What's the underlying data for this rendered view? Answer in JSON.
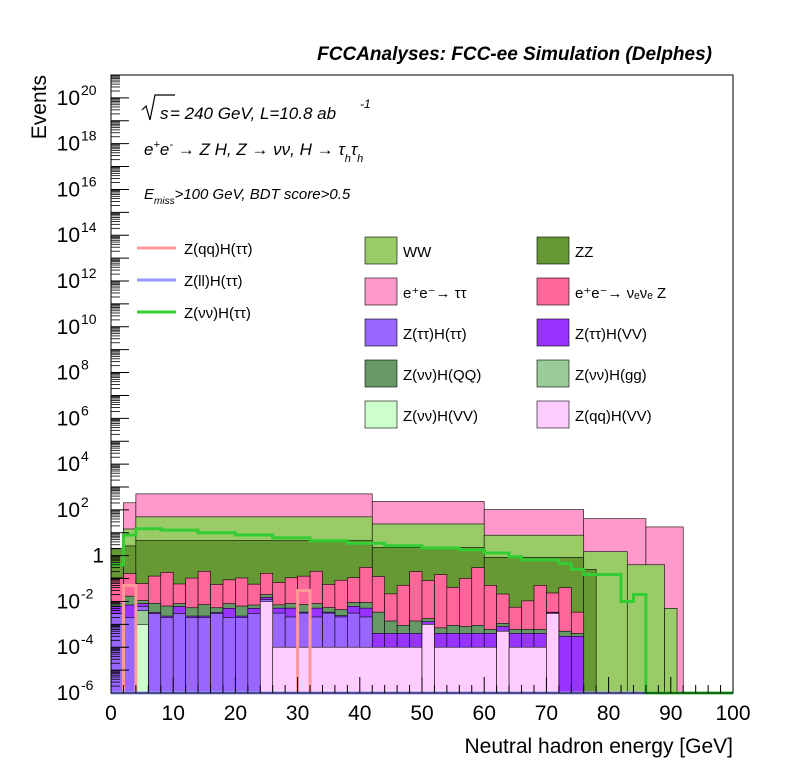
{
  "header": {
    "title": "FCCAnalyses: FCC-ee Simulation (Delphes)"
  },
  "annotations": {
    "sqrt_s": "s",
    "lumi_text": " = 240 GeV, L=10.8 ab",
    "lumi_exp": "-1",
    "process_line": "e+e- → Z H, Z → νν, H → τhτh",
    "process_parts": {
      "e": "e",
      "plus": "+",
      "minus": "-",
      "arrow1": " → Z H, Z  → ",
      "nunu": "νν",
      "arrow2": ", H → ",
      "tau": "τ",
      "h": "h"
    },
    "cut_E": "E",
    "cut_miss": "miss",
    "cut_rest": ">100 GeV, BDT score>0.5"
  },
  "chart_data": {
    "type": "bar",
    "stacked": true,
    "yscale": "log",
    "xlabel": "Neutral hadron energy [GeV]",
    "ylabel": "Events",
    "xlim": [
      0,
      100
    ],
    "ylim": [
      1e-06,
      1e+21
    ],
    "x_ticks": [
      "0",
      "10",
      "20",
      "30",
      "40",
      "50",
      "60",
      "70",
      "80",
      "90",
      "100"
    ],
    "y_ticks": [
      {
        "base": "10",
        "exp": "-6",
        "value": 1e-06
      },
      {
        "base": "10",
        "exp": "-4",
        "value": 0.0001
      },
      {
        "base": "10",
        "exp": "-2",
        "value": 0.01
      },
      {
        "base": "1",
        "exp": "",
        "value": 1
      },
      {
        "base": "10",
        "exp": "2",
        "value": 100.0
      },
      {
        "base": "10",
        "exp": "4",
        "value": 10000.0
      },
      {
        "base": "10",
        "exp": "6",
        "value": 1000000.0
      },
      {
        "base": "10",
        "exp": "8",
        "value": 100000000.0
      },
      {
        "base": "10",
        "exp": "10",
        "value": 10000000000.0
      },
      {
        "base": "10",
        "exp": "12",
        "value": 1000000000000.0
      },
      {
        "base": "10",
        "exp": "14",
        "value": 100000000000000.0
      },
      {
        "base": "10",
        "exp": "16",
        "value": 1e+16
      },
      {
        "base": "10",
        "exp": "18",
        "value": 1e+18
      },
      {
        "base": "10",
        "exp": "20",
        "value": 1e+20
      }
    ],
    "backgrounds": [
      {
        "name": "e+e- → τ τ",
        "label": "e⁺e⁻→ ττ",
        "color": "#ff99cc",
        "edges": [
          2,
          4,
          42,
          60,
          76,
          86,
          92
        ],
        "values": [
          190,
          450,
          210,
          95,
          40,
          18
        ]
      },
      {
        "name": "WW",
        "label": "WW",
        "color": "#99cc66",
        "edges": [
          2,
          4,
          42,
          60,
          76,
          83,
          89,
          91
        ],
        "values": [
          12,
          45,
          22,
          7,
          1.5,
          0.4,
          0.005
        ]
      },
      {
        "name": "ZZ",
        "label": "ZZ",
        "color": "#669933",
        "edges": [
          0,
          2,
          4,
          42,
          60,
          76,
          78
        ],
        "values": [
          2,
          2.5,
          4.5,
          2.2,
          0.8,
          0.25
        ]
      },
      {
        "name": "e+e- → νeνe Z",
        "label": "e⁺e⁻→ νₑνₑ Z",
        "color": "#ff6699",
        "edges": [
          0,
          2,
          4,
          6,
          8,
          10,
          12,
          14,
          16,
          18,
          20,
          22,
          24,
          26,
          28,
          30,
          32,
          34,
          36,
          38,
          40,
          42,
          44,
          46,
          48,
          50,
          52,
          54,
          56,
          58,
          60,
          62,
          64,
          66,
          68,
          70,
          72,
          74,
          76
        ],
        "values": [
          0.1,
          0.15,
          0.05,
          0.12,
          0.18,
          0.05,
          0.1,
          0.2,
          0.05,
          0.08,
          0.1,
          0.05,
          0.15,
          0.06,
          0.1,
          0.12,
          0.2,
          0.05,
          0.08,
          0.1,
          0.3,
          0.12,
          0.02,
          0.05,
          0.2,
          0.08,
          0.15,
          0.04,
          0.1,
          0.3,
          0.05,
          0.02,
          0.005,
          0.01,
          0.05,
          0.02,
          0.04,
          0.003
        ]
      },
      {
        "name": "Z(νν)H(QQ)",
        "label": "Z(νν)H(QQ)",
        "color": "#669966",
        "edges": [
          0,
          2,
          4,
          6,
          8,
          10,
          12,
          14,
          16,
          18,
          20,
          22,
          24,
          26,
          28,
          30,
          32,
          34,
          36,
          38,
          40,
          42,
          44,
          46,
          48,
          50,
          52,
          54,
          56,
          58,
          60,
          62,
          64,
          66,
          68,
          70,
          72,
          74,
          76
        ],
        "values": [
          0.002,
          0.01,
          0.003,
          0.005,
          0.004,
          0.002,
          0.003,
          0.005,
          0.002,
          0.003,
          0.004,
          0.002,
          0.005,
          0.002,
          0.003,
          0.004,
          0.003,
          0.002,
          0.002,
          0.003,
          0.004,
          0.003,
          0.001,
          0.0005,
          0.001,
          0.0005,
          0.0003,
          0.0005,
          0.0004,
          0.0005,
          0.0002,
          0.0003,
          0.0002,
          0.0002,
          0.0002,
          0.0001,
          0.0002,
          0.0001
        ]
      },
      {
        "name": "Z(ττ)H(VV)",
        "label": "Z(ττ)H(VV)",
        "color": "#9933ff",
        "edges": [
          0,
          2,
          4,
          6,
          8,
          10,
          12,
          14,
          16,
          18,
          20,
          22,
          24,
          26,
          28,
          30,
          32,
          34,
          36,
          38,
          40,
          42,
          44,
          46,
          48,
          50,
          52,
          54,
          56,
          58,
          60,
          62,
          64,
          66,
          68,
          70,
          72,
          74,
          76
        ],
        "values": [
          0.003,
          0.005,
          0.002,
          0.0003,
          0.0003,
          0.003,
          0.0003,
          0.0003,
          0.0003,
          0.003,
          0.0003,
          0.002,
          0.003,
          0.002,
          0.003,
          0.0003,
          0.003,
          0.0003,
          0.0003,
          0.003,
          0.003,
          0.0003,
          0.0003,
          0.0003,
          0.0003,
          0.0003,
          0.0003,
          0.0003,
          0.0003,
          0.0003,
          0.0003,
          0.0003,
          0.0003,
          0.0003,
          0.0003,
          0.0003,
          0.0003,
          0.0003
        ]
      },
      {
        "name": "Z(ττ)H(ττ)",
        "label": "Z(ττ)H(ττ)",
        "color": "#9966ff",
        "edges": [
          0,
          2,
          4,
          6,
          8,
          10,
          12,
          14,
          16,
          18,
          20,
          22,
          24,
          26,
          28,
          30,
          32,
          34,
          36,
          38,
          40,
          42
        ],
        "values": [
          0.003,
          0.002,
          0.002,
          0.003,
          0.002,
          0.003,
          0.002,
          0.002,
          0.003,
          0.002,
          0.002,
          0.003,
          0.002,
          0.003,
          0.002,
          0.003,
          0.002,
          0.003,
          0.002,
          0.003,
          0.002
        ]
      },
      {
        "name": "Z(νν)H(gg)",
        "label": "Z(νν)H(gg)",
        "color": "#99cc99",
        "edges": [
          4,
          6
        ],
        "values": [
          0.003
        ]
      },
      {
        "name": "Z(νν)H(VV)",
        "label": "Z(νν)H(VV)",
        "color": "#ccffcc",
        "edges": [
          4,
          6
        ],
        "values": [
          0.001
        ]
      },
      {
        "name": "Z(qq)H(VV)",
        "label": "Z(qq)H(VV)",
        "color": "#ffccff",
        "edges": [
          24,
          26,
          50,
          52,
          62,
          64,
          70,
          72
        ],
        "values": [
          0.01,
          0.0001,
          0.001,
          0.0001,
          0.0005,
          0.0001,
          0.003
        ]
      }
    ],
    "signals": [
      {
        "name": "Z(qq)H(ττ)",
        "label": "Z(qq)H(ττ)",
        "color": "#ff9999",
        "edges": [
          0,
          2,
          4,
          30,
          32,
          100
        ],
        "values": [
          1e-07,
          0.05,
          1e-07,
          0.03,
          1e-07
        ]
      },
      {
        "name": "Z(ll)H(ττ)",
        "label": "Z(ll)H(ττ)",
        "color": "#9999ff",
        "edges": [
          0,
          100
        ],
        "values": [
          1e-07
        ]
      },
      {
        "name": "Z(νν)H(ττ)",
        "label": "Z(νν)H(ττ)",
        "color": "#33cc33",
        "edges": [
          0,
          2,
          4,
          8,
          14,
          20,
          26,
          32,
          38,
          44,
          50,
          56,
          60,
          64,
          66,
          72,
          74,
          76,
          82,
          84,
          86,
          100
        ],
        "values": [
          0.4,
          8,
          15,
          13,
          10,
          8,
          6,
          4.5,
          3.5,
          2.7,
          2.2,
          1.8,
          1.3,
          0.9,
          0.65,
          0.45,
          0.25,
          0.15,
          0.01,
          0.02,
          1e-06
        ]
      }
    ],
    "legend_signals_placement": "top-left",
    "legend_backgrounds_placement": "top-right, two columns",
    "grid": false
  }
}
